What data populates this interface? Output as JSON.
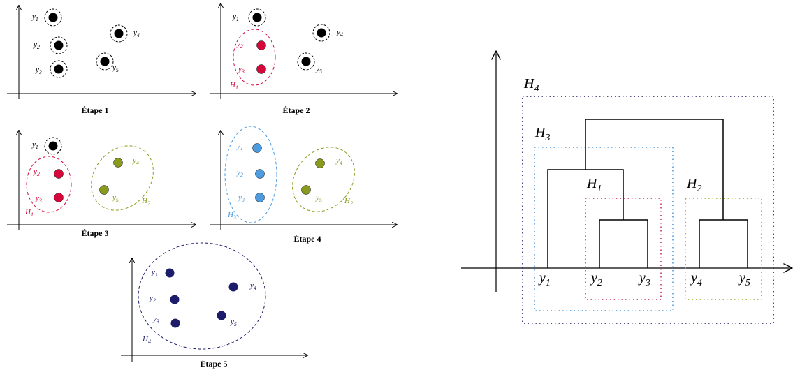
{
  "colors": {
    "black": "#000000",
    "red": "#d6083b",
    "green": "#8a9a1c",
    "blue": "#4f9be0",
    "navy": "#1c1c6b",
    "pink": "#c0336a",
    "dotblue": "#4f9be0",
    "dotgreen": "#9aab2a",
    "dotnavy": "#1c1c6b"
  },
  "points": {
    "y1": "y",
    "y1_sub": "1",
    "y2": "y",
    "y2_sub": "2",
    "y3": "y",
    "y3_sub": "3",
    "y4": "y",
    "y4_sub": "4",
    "y5": "y",
    "y5_sub": "5"
  },
  "clusters": {
    "H1": "H",
    "H1_sub": "1",
    "H2": "H",
    "H2_sub": "2",
    "H3": "H",
    "H3_sub": "3",
    "H4": "H",
    "H4_sub": "4"
  },
  "steps": {
    "step1": "Étape 1",
    "step2": "Étape 2",
    "step3": "Étape 3",
    "step4": "Étape 4",
    "step5": "Étape 5"
  }
}
